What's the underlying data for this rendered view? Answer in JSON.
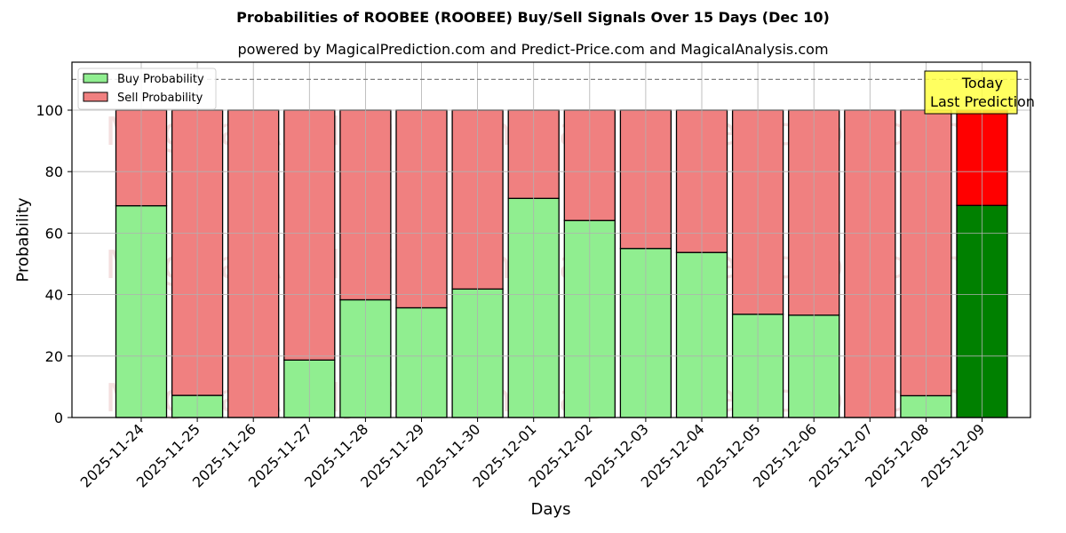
{
  "chart_data": {
    "type": "bar",
    "stacked": true,
    "title": "Probabilities of ROOBEE (ROOBEE) Buy/Sell Signals Over 15 Days (Dec 10)",
    "subtitle": "powered by MagicalPrediction.com and Predict-Price.com and MagicalAnalysis.com",
    "xlabel": "Days",
    "ylabel": "Probability",
    "ylim": [
      0,
      115
    ],
    "yticks": [
      0,
      20,
      40,
      60,
      80,
      100
    ],
    "grid": true,
    "legend_position": "upper left",
    "categories": [
      "2025-11-24",
      "2025-11-25",
      "2025-11-26",
      "2025-11-27",
      "2025-11-28",
      "2025-11-29",
      "2025-11-30",
      "2025-12-01",
      "2025-12-02",
      "2025-12-03",
      "2025-12-04",
      "2025-12-05",
      "2025-12-06",
      "2025-12-07",
      "2025-12-08",
      "2025-12-09"
    ],
    "series": [
      {
        "name": "Buy Probability",
        "color": "#90ee90",
        "values": [
          68.9,
          7.2,
          0,
          18.7,
          38.3,
          35.7,
          41.8,
          71.3,
          64.1,
          55.0,
          53.7,
          33.6,
          33.3,
          0,
          7.1,
          69.0
        ]
      },
      {
        "name": "Sell Probability",
        "color": "#f08080",
        "values": [
          31.1,
          92.8,
          100,
          81.3,
          61.7,
          64.3,
          58.2,
          28.7,
          35.9,
          45.0,
          46.3,
          66.4,
          66.7,
          100,
          92.9,
          31.0
        ]
      }
    ],
    "highlight": {
      "index": 15,
      "buy_color": "#008000",
      "sell_color": "#ff0000"
    },
    "reference_line": {
      "y": 110,
      "style": "dashed",
      "color": "#808080"
    },
    "annotation": {
      "text_line1": "Today",
      "text_line2": "Last Prediction",
      "background": "#ffff44"
    },
    "watermarks": [
      "MagicalAnalysis.com",
      "MagicalPrediction.com"
    ]
  }
}
